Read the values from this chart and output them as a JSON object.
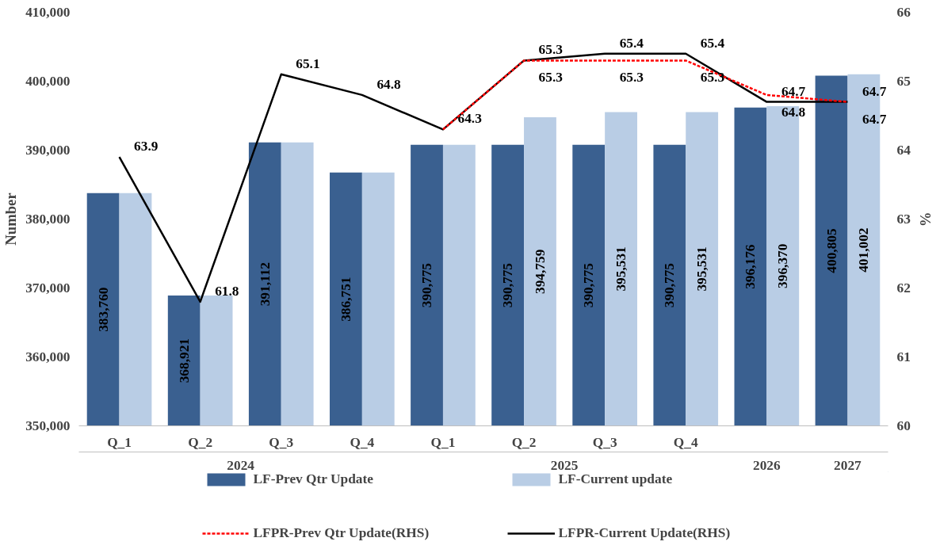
{
  "chart_data": {
    "type": "bar",
    "ylabel": "Number",
    "y2label": "%",
    "categories": [
      "Q_1",
      "Q_2",
      "Q_3",
      "Q_4",
      "Q_1",
      "Q_2",
      "Q_3",
      "Q_4",
      null,
      null
    ],
    "annotations": [
      "2024",
      "2025",
      "2026",
      "2027"
    ],
    "series": [
      {
        "name": "LF-Prev Qtr Update",
        "color": "#3a6090",
        "values": [
          383760,
          368921,
          391112,
          386751,
          390775,
          390775,
          390775,
          390775,
          396176,
          400805
        ],
        "value_labels": [
          "383,760",
          "368,921",
          "391,112",
          "386,751",
          "390,775",
          "390,775",
          "390,775",
          "390,775",
          "396,176",
          "400,805"
        ]
      },
      {
        "name": "LF-Current update",
        "color": "#b9cde5",
        "values": [
          383760,
          368921,
          391112,
          386751,
          390775,
          394759,
          395531,
          395531,
          396370,
          401002
        ],
        "value_labels": [
          null,
          null,
          null,
          null,
          null,
          "394,759",
          "395,531",
          "395,531",
          "396,370",
          "401,002"
        ]
      },
      {
        "name": "LFPR-Prev Qtr Update(RHS)",
        "type": "line",
        "axis": "y2",
        "color": "#ff0000",
        "line_style": "dashed",
        "values": [
          null,
          null,
          null,
          null,
          64.3,
          65.3,
          65.3,
          65.3,
          64.8,
          64.7
        ],
        "value_labels": [
          null,
          null,
          null,
          null,
          null,
          "65.3",
          "65.3",
          "65.3",
          "64.8",
          "64.7"
        ]
      },
      {
        "name": "LFPR-Current Update(RHS)",
        "type": "line",
        "axis": "y2",
        "color": "#000000",
        "line_style": "solid",
        "values": [
          63.9,
          61.8,
          65.1,
          64.8,
          64.3,
          65.3,
          65.4,
          65.4,
          64.7,
          64.7
        ],
        "value_labels": [
          "63.9",
          "61.8",
          "65.1",
          "64.8",
          "64.3",
          "65.3",
          "65.4",
          "65.4",
          "64.7",
          "64.7"
        ]
      }
    ],
    "ylim": [
      350000,
      410000
    ],
    "yticks": [
      {
        "value": 350000,
        "label": "350,000"
      },
      {
        "value": 360000,
        "label": "360,000"
      },
      {
        "value": 370000,
        "label": "370,000"
      },
      {
        "value": 380000,
        "label": "380,000"
      },
      {
        "value": 390000,
        "label": "390,000"
      },
      {
        "value": 400000,
        "label": "400,000"
      },
      {
        "value": 410000,
        "label": "410,000"
      }
    ],
    "y2lim": [
      60,
      66
    ],
    "y2ticks": [
      60,
      61,
      62,
      63,
      64,
      65,
      66
    ],
    "grid": false,
    "legend": "bottom"
  }
}
